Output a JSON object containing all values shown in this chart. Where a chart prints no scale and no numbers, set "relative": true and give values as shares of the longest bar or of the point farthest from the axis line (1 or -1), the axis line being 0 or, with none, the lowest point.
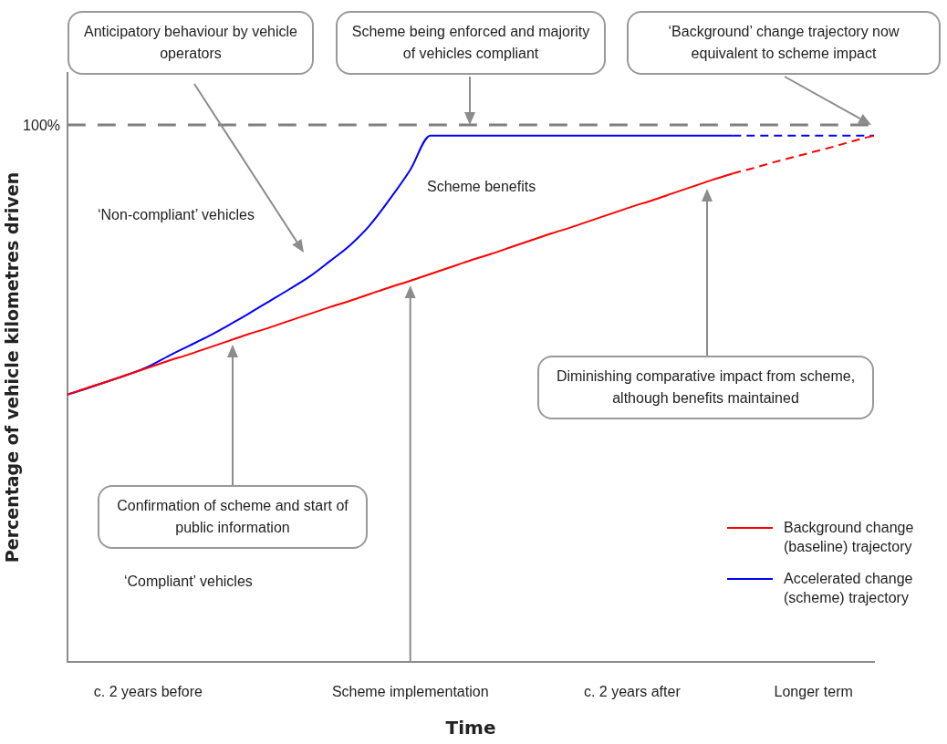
{
  "chart_data": {
    "type": "line",
    "relative": true,
    "xlabel": "Time",
    "ylabel": "Percentage of vehicle kilometres driven",
    "categories": [
      null,
      null,
      null,
      null,
      "c. 2 years before",
      null,
      null,
      null,
      null,
      null,
      null,
      null,
      null,
      null,
      null,
      null,
      null,
      "Scheme implementation",
      null,
      null,
      null,
      null,
      null,
      null,
      null,
      null,
      null,
      null,
      "c. 2 years after",
      null,
      null,
      null,
      null,
      null,
      null,
      null,
      null,
      "Longer term",
      null,
      null,
      null
    ],
    "tick_labels": "x",
    "grid": false,
    "marker": "none",
    "legend": "bottom right",
    "series": [
      {
        "name": "Background change (baseline) trajectory",
        "color": "#ff0000",
        "values": [
          0.508,
          0.521,
          0.533,
          0.546,
          0.559,
          0.572,
          0.584,
          0.597,
          0.61,
          0.623,
          0.635,
          0.648,
          0.661,
          0.674,
          0.686,
          0.699,
          0.712,
          0.724,
          0.737,
          0.75,
          0.763,
          0.775,
          0.788,
          0.801,
          0.814,
          0.826,
          0.839,
          0.852,
          0.865,
          0.877,
          0.89,
          0.903,
          0.916,
          0.928,
          null,
          null,
          null,
          null,
          null,
          null,
          null
        ]
      },
      {
        "color": "#ff0000",
        "line_style": "dashed",
        "values": [
          null,
          null,
          null,
          null,
          null,
          null,
          null,
          null,
          null,
          null,
          null,
          null,
          null,
          null,
          null,
          null,
          null,
          null,
          null,
          null,
          null,
          null,
          null,
          null,
          null,
          null,
          null,
          null,
          null,
          null,
          null,
          null,
          null,
          0.928,
          0.938,
          0.949,
          0.959,
          0.969,
          0.979,
          0.99,
          1.0
        ]
      },
      {
        "name": "Accelerated change (scheme) trajectory",
        "color": "#0000ff",
        "values": [
          0.508,
          0.52,
          0.533,
          0.546,
          0.561,
          0.581,
          0.6,
          0.619,
          0.64,
          0.662,
          0.685,
          0.708,
          0.732,
          0.761,
          0.791,
          0.83,
          0.88,
          0.935,
          1.0,
          1.0,
          1.0,
          1.0,
          1.0,
          1.0,
          1.0,
          1.0,
          1.0,
          1.0,
          1.0,
          1.0,
          1.0,
          1.0,
          1.0,
          1.0,
          null,
          null,
          null,
          null,
          null,
          null,
          null
        ]
      },
      {
        "color": "#0000ff",
        "line_style": "dashed",
        "values": [
          null,
          null,
          null,
          null,
          null,
          null,
          null,
          null,
          null,
          null,
          null,
          null,
          null,
          null,
          null,
          null,
          null,
          null,
          null,
          null,
          null,
          null,
          null,
          null,
          null,
          null,
          null,
          null,
          null,
          null,
          null,
          null,
          null,
          1.0,
          1.0,
          1.0,
          1.0,
          1.0,
          1.0,
          1.0,
          1.0
        ]
      }
    ],
    "ref_lines": [
      {
        "axis": "y",
        "value": 1.02,
        "color": "#808080",
        "line_style": "dashed"
      }
    ],
    "annotations": [
      "Anticipatory behaviour by vehicle operators",
      "Scheme being enforced and majority of vehicles compliant",
      "‘Background’ change trajectory now equivalent to scheme impact",
      "Confirmation of scheme and start of public information",
      "Diminishing comparative impact from scheme, although benefits maintained",
      "‘Non-compliant’ vehicles",
      "Scheme benefits",
      "‘Compliant’ vehicles",
      "100%"
    ]
  }
}
